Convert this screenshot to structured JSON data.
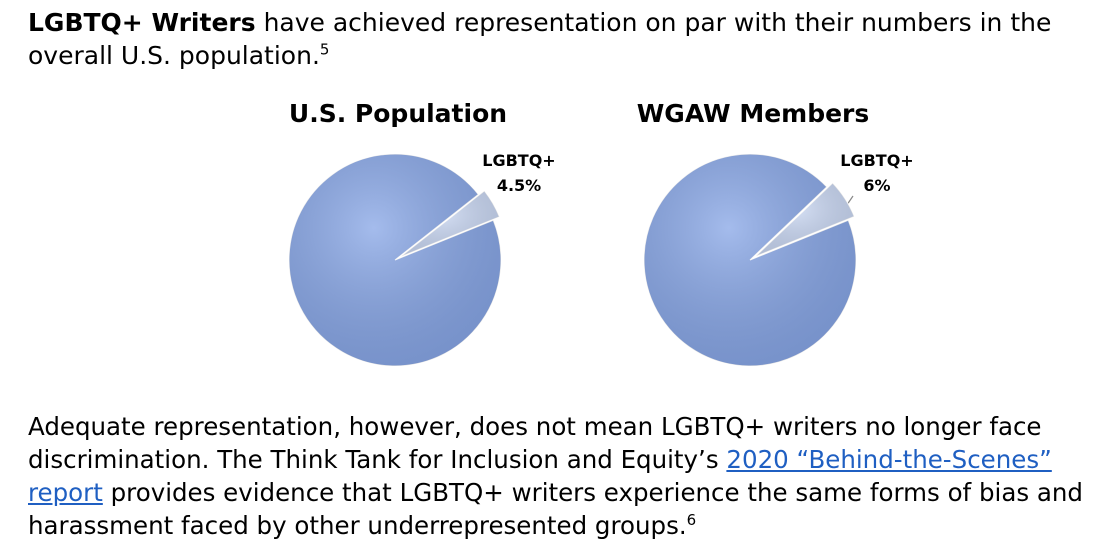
{
  "heading": {
    "bold": "LGBTQ+ Writers",
    "text": " have achieved representation on par with their numbers in the overall U.S. population.",
    "note": "5"
  },
  "chart_data": [
    {
      "type": "pie",
      "title": "U.S. Population",
      "categories": [
        "LGBTQ+",
        null
      ],
      "values": [
        4.5,
        95.5
      ],
      "value_labels": [
        "4.5%",
        null
      ],
      "colors": [
        "#c9d7f3",
        "#86a5e6"
      ]
    },
    {
      "type": "pie",
      "title": "WGAW Members",
      "categories": [
        "LGBTQ+",
        null
      ],
      "values": [
        6,
        94
      ],
      "value_labels": [
        "6%",
        null
      ],
      "colors": [
        "#c9d7f3",
        "#86a5e6"
      ]
    }
  ],
  "paragraph": {
    "before": "Adequate representation, however, does not mean LGBTQ+ writers no longer face discrimination. The Think Tank for Inclusion and Equity’s ",
    "link": "2020 “Behind-the-Scenes” report",
    "after": " provides evidence that LGBTQ+ writers experience the same forms of bias and harassment faced by other underrepresented groups.",
    "note": "6"
  }
}
